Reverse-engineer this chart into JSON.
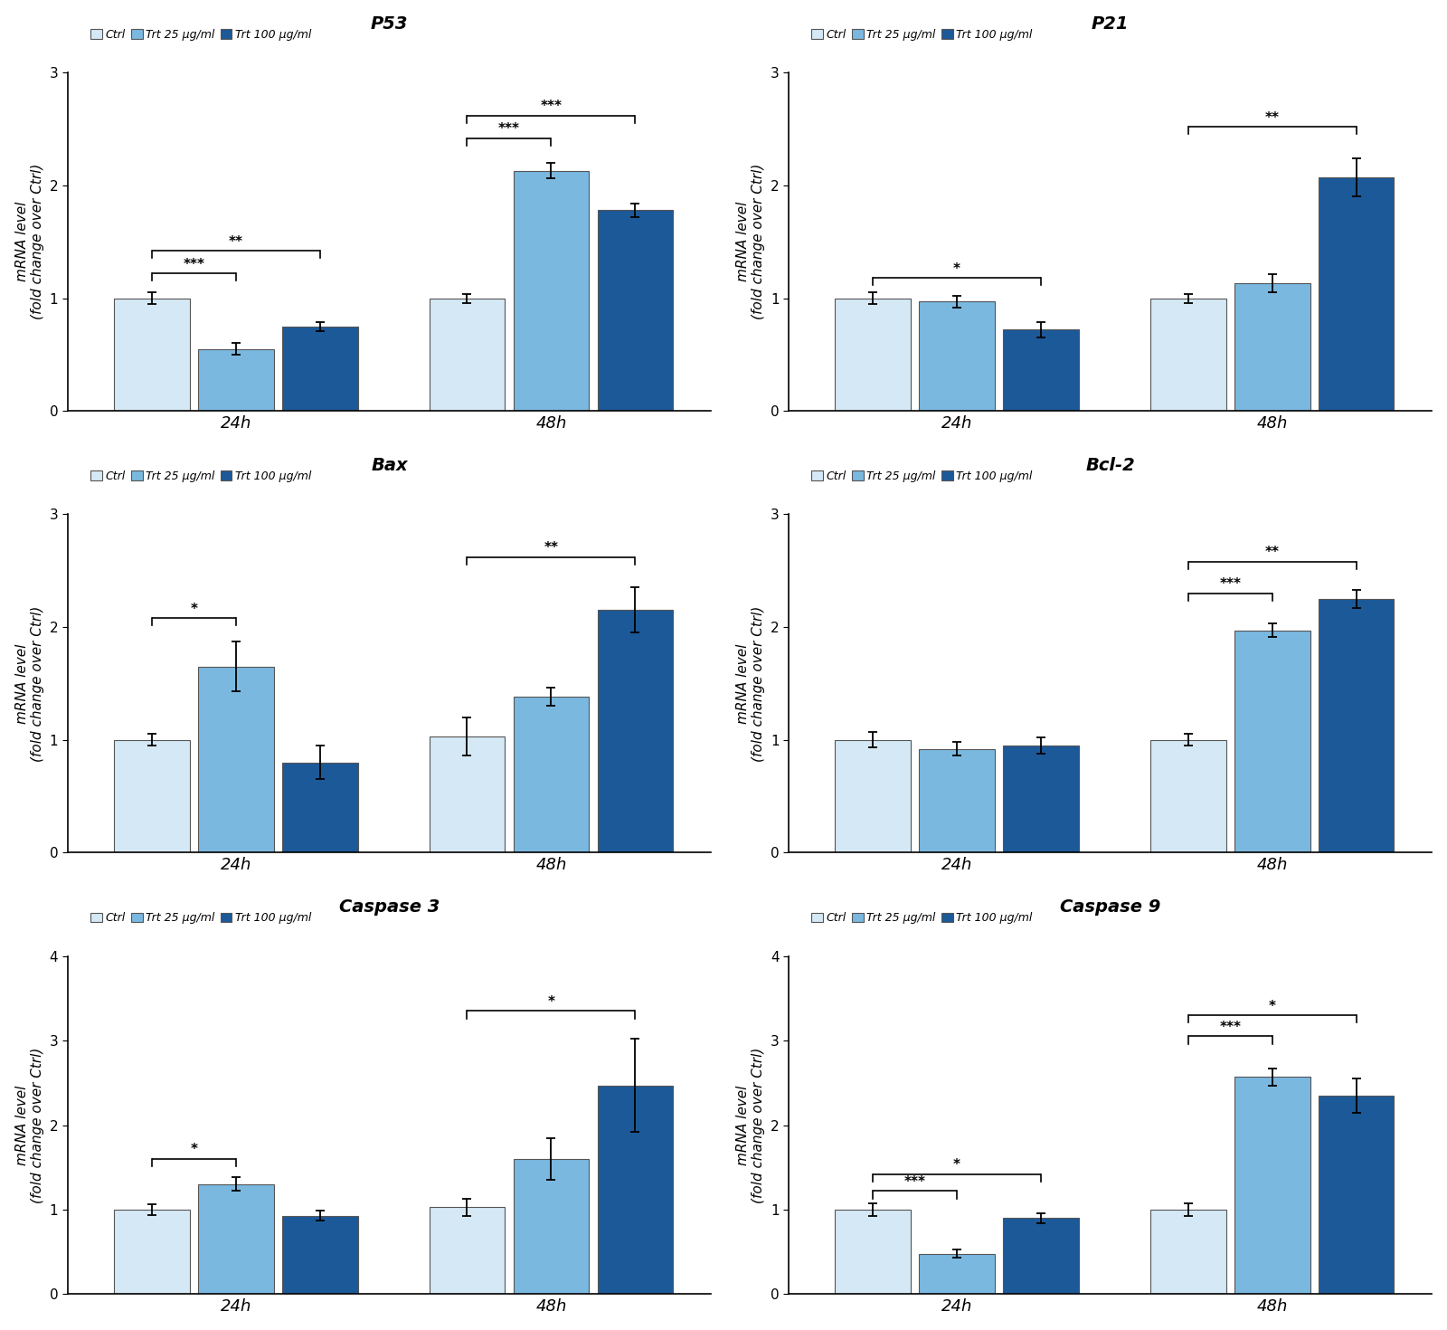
{
  "panels": [
    {
      "title": "P53",
      "ylim": [
        0,
        3
      ],
      "yticks": [
        0,
        1,
        2,
        3
      ],
      "bars": {
        "ctrl": [
          1.0,
          1.0
        ],
        "trt25": [
          0.55,
          2.13
        ],
        "trt100": [
          0.75,
          1.78
        ]
      },
      "errors": {
        "ctrl": [
          0.05,
          0.04
        ],
        "trt25": [
          0.05,
          0.07
        ],
        "trt100": [
          0.04,
          0.06
        ]
      },
      "sig_24h": [
        {
          "b1": 0,
          "b2": 1,
          "label": "***",
          "y": 1.22
        },
        {
          "b1": 0,
          "b2": 2,
          "label": "**",
          "y": 1.42
        }
      ],
      "sig_48h": [
        {
          "b1": 0,
          "b2": 1,
          "label": "***",
          "y": 2.42
        },
        {
          "b1": 0,
          "b2": 2,
          "label": "***",
          "y": 2.62
        }
      ]
    },
    {
      "title": "P21",
      "ylim": [
        0,
        3
      ],
      "yticks": [
        0,
        1,
        2,
        3
      ],
      "bars": {
        "ctrl": [
          1.0,
          1.0
        ],
        "trt25": [
          0.97,
          1.13
        ],
        "trt100": [
          0.72,
          2.07
        ]
      },
      "errors": {
        "ctrl": [
          0.05,
          0.04
        ],
        "trt25": [
          0.05,
          0.08
        ],
        "trt100": [
          0.07,
          0.17
        ]
      },
      "sig_24h": [
        {
          "b1": 0,
          "b2": 2,
          "label": "*",
          "y": 1.18
        }
      ],
      "sig_48h": [
        {
          "b1": 0,
          "b2": 2,
          "label": "**",
          "y": 2.52
        }
      ]
    },
    {
      "title": "Bax",
      "ylim": [
        0,
        3
      ],
      "yticks": [
        0,
        1,
        2,
        3
      ],
      "bars": {
        "ctrl": [
          1.0,
          1.03
        ],
        "trt25": [
          1.65,
          1.38
        ],
        "trt100": [
          0.8,
          2.15
        ]
      },
      "errors": {
        "ctrl": [
          0.05,
          0.17
        ],
        "trt25": [
          0.22,
          0.08
        ],
        "trt100": [
          0.15,
          0.2
        ]
      },
      "sig_24h": [
        {
          "b1": 0,
          "b2": 1,
          "label": "*",
          "y": 2.08
        }
      ],
      "sig_48h": [
        {
          "b1": 0,
          "b2": 2,
          "label": "**",
          "y": 2.62
        }
      ]
    },
    {
      "title": "Bcl-2",
      "ylim": [
        0,
        3
      ],
      "yticks": [
        0,
        1,
        2,
        3
      ],
      "bars": {
        "ctrl": [
          1.0,
          1.0
        ],
        "trt25": [
          0.92,
          1.97
        ],
        "trt100": [
          0.95,
          2.25
        ]
      },
      "errors": {
        "ctrl": [
          0.07,
          0.05
        ],
        "trt25": [
          0.06,
          0.06
        ],
        "trt100": [
          0.07,
          0.08
        ]
      },
      "sig_24h": [],
      "sig_48h": [
        {
          "b1": 0,
          "b2": 1,
          "label": "***",
          "y": 2.3
        },
        {
          "b1": 0,
          "b2": 2,
          "label": "**",
          "y": 2.58
        }
      ]
    },
    {
      "title": "Caspase 3",
      "ylim": [
        0,
        4
      ],
      "yticks": [
        0,
        1,
        2,
        3,
        4
      ],
      "bars": {
        "ctrl": [
          1.0,
          1.03
        ],
        "trt25": [
          1.3,
          1.6
        ],
        "trt100": [
          0.93,
          2.47
        ]
      },
      "errors": {
        "ctrl": [
          0.06,
          0.1
        ],
        "trt25": [
          0.08,
          0.25
        ],
        "trt100": [
          0.06,
          0.55
        ]
      },
      "sig_24h": [
        {
          "b1": 0,
          "b2": 1,
          "label": "*",
          "y": 1.6
        }
      ],
      "sig_48h": [
        {
          "b1": 0,
          "b2": 2,
          "label": "*",
          "y": 3.35
        }
      ]
    },
    {
      "title": "Caspase 9",
      "ylim": [
        0,
        4
      ],
      "yticks": [
        0,
        1,
        2,
        3,
        4
      ],
      "bars": {
        "ctrl": [
          1.0,
          1.0
        ],
        "trt25": [
          0.48,
          2.57
        ],
        "trt100": [
          0.9,
          2.35
        ]
      },
      "errors": {
        "ctrl": [
          0.07,
          0.07
        ],
        "trt25": [
          0.05,
          0.1
        ],
        "trt100": [
          0.06,
          0.2
        ]
      },
      "sig_24h": [
        {
          "b1": 0,
          "b2": 1,
          "label": "***",
          "y": 1.22
        },
        {
          "b1": 0,
          "b2": 2,
          "label": "*",
          "y": 1.42
        }
      ],
      "sig_48h": [
        {
          "b1": 0,
          "b2": 1,
          "label": "***",
          "y": 3.05
        },
        {
          "b1": 0,
          "b2": 2,
          "label": "*",
          "y": 3.3
        }
      ]
    }
  ],
  "colors": {
    "ctrl": "#d4e8f5",
    "trt25": "#7ab8e0",
    "trt100": "#1c5998"
  },
  "legend_labels": [
    "Ctrl",
    "Trt 25 μg/ml",
    "Trt 100 μg/ml"
  ],
  "ylabel": "mRNA level\n(fold change over Ctrl)",
  "bar_width": 0.2,
  "group_centers": [
    0.35,
    1.1
  ],
  "edge_color": "#555555",
  "tick_label_fontsize": 13,
  "axis_label_fontsize": 11,
  "title_fontsize": 14,
  "legend_fontsize": 9,
  "sig_fontsize": 11
}
